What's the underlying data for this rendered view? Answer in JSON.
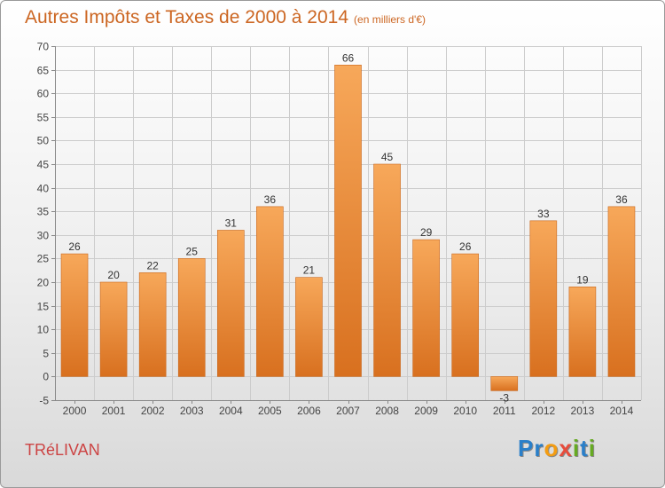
{
  "title": "Autres Impôts et Taxes de 2000 à 2014",
  "subtitle": "(en milliers d'€)",
  "commune": "TRéLIVAN",
  "logo": {
    "text": "Proxiti",
    "letters": [
      "P",
      "r",
      "o",
      "x",
      "i",
      "t",
      "i"
    ],
    "colors": [
      "#2a7fc9",
      "#2a7fc9",
      "#f39c12",
      "#e74c3c",
      "#66aa22",
      "#2a7fc9",
      "#66aa22"
    ]
  },
  "colors": {
    "bar_top": "#f7a85a",
    "bar_bottom": "#d8701f",
    "title": "#cc6622",
    "commune": "#cc4444",
    "grid": "#cccccc"
  },
  "chart_data": {
    "type": "bar",
    "categories": [
      "2000",
      "2001",
      "2002",
      "2003",
      "2004",
      "2005",
      "2006",
      "2007",
      "2008",
      "2009",
      "2010",
      "2011",
      "2012",
      "2013",
      "2014"
    ],
    "values": [
      26,
      20,
      22,
      25,
      31,
      36,
      21,
      66,
      45,
      29,
      26,
      -3,
      33,
      19,
      36
    ],
    "data_labels": [
      "26",
      "20",
      "22",
      "25",
      "31",
      "36",
      "21",
      "66",
      "45",
      "29",
      "26",
      "-3",
      "33",
      "19",
      "36"
    ],
    "ylim": [
      -5,
      70
    ],
    "yticks": [
      -5,
      0,
      5,
      10,
      15,
      20,
      25,
      30,
      35,
      40,
      45,
      50,
      55,
      60,
      65,
      70
    ],
    "grid": true
  }
}
